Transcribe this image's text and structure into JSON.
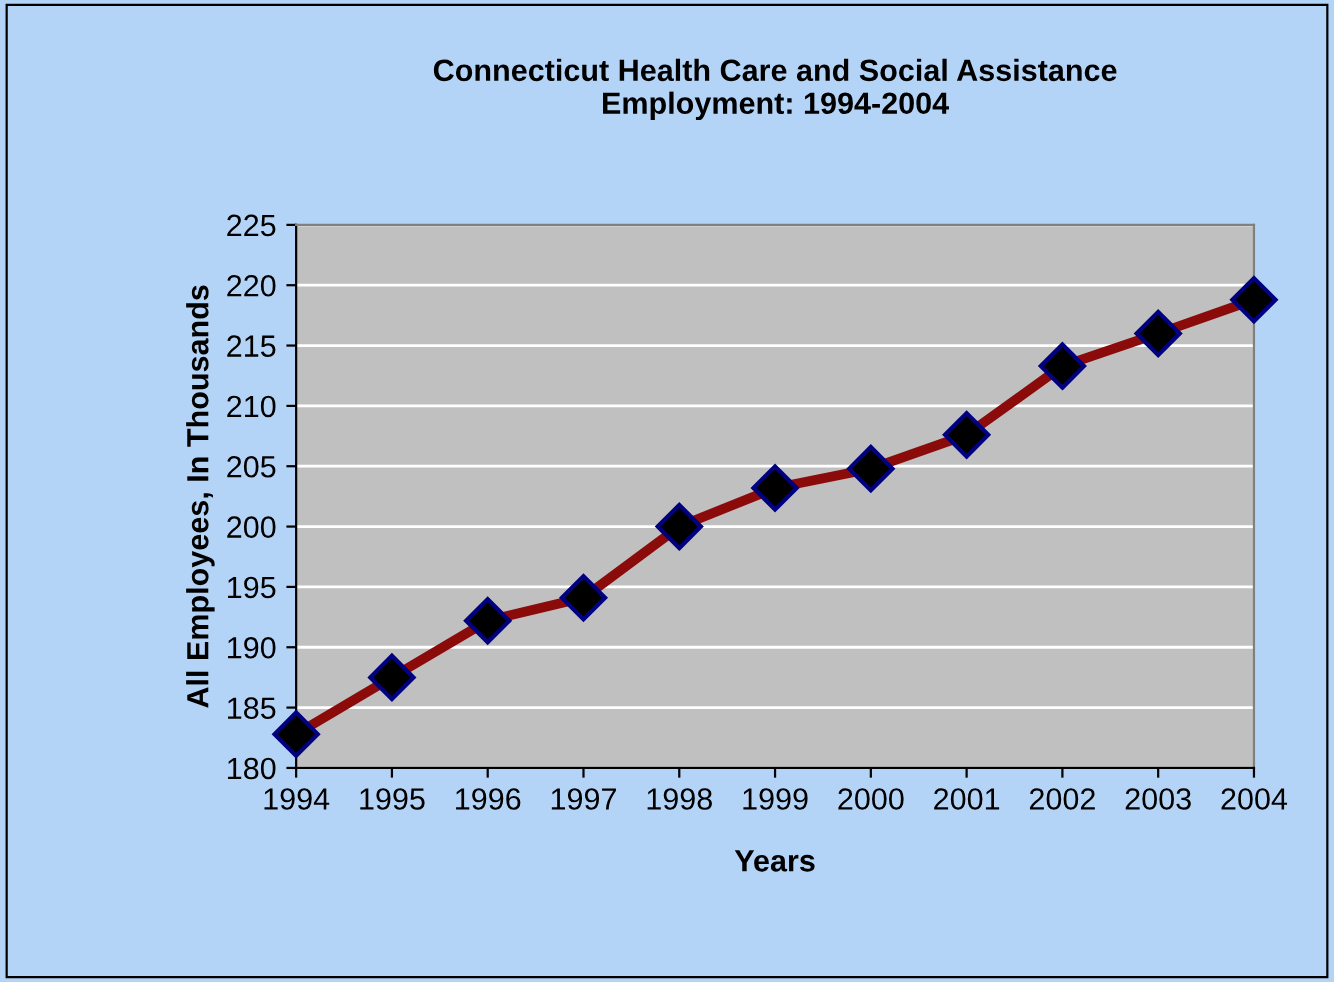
{
  "chart_data": {
    "type": "line",
    "title": "Connecticut Health Care and Social Assistance\nEmployment: 1994-2004",
    "xlabel": "Years",
    "ylabel": "All Employees, In Thousands",
    "x": [
      1994,
      1995,
      1996,
      1997,
      1998,
      1999,
      2000,
      2001,
      2002,
      2003,
      2004
    ],
    "series": [
      {
        "color": "#8b0a0a",
        "values": [
          182.8,
          187.5,
          192.2,
          194.1,
          200.0,
          203.2,
          204.8,
          207.6,
          213.3,
          216.0,
          218.8
        ]
      }
    ],
    "xlim": [
      1994,
      2004
    ],
    "xticks": [
      1994,
      1995,
      1996,
      1997,
      1998,
      1999,
      2000,
      2001,
      2002,
      2003,
      2004
    ],
    "ylim": [
      180,
      225
    ],
    "yticks": [
      180,
      185,
      190,
      195,
      200,
      205,
      210,
      215,
      220,
      225
    ],
    "grid": "y",
    "marker": "diamond",
    "line_style": "solid",
    "legend": false
  }
}
